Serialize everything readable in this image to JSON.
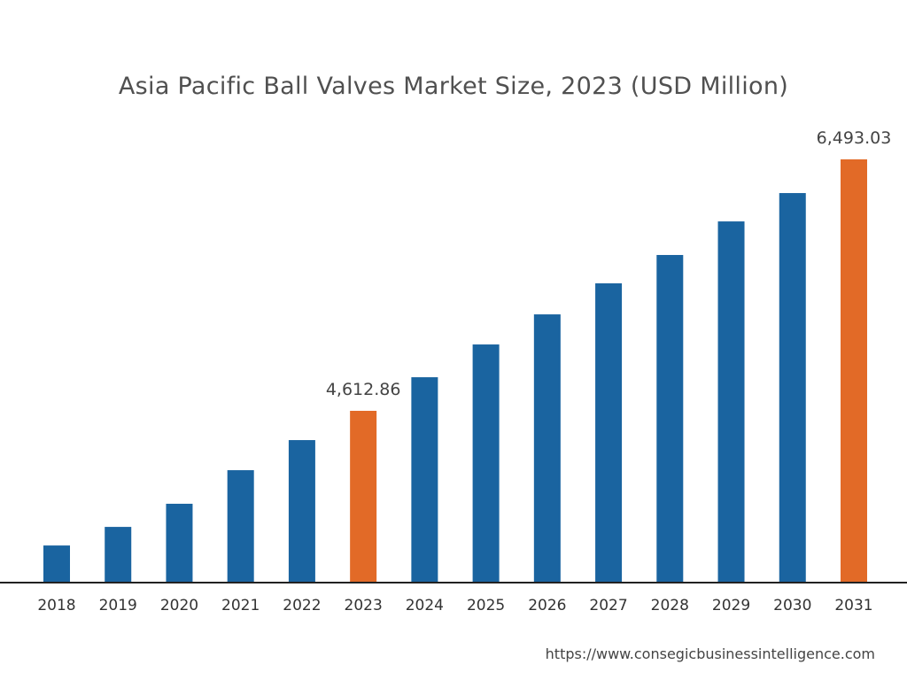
{
  "chart_data": {
    "type": "bar",
    "title": "Asia Pacific Ball Valves Market Size, 2023 (USD Million)",
    "categories": [
      "2018",
      "2019",
      "2020",
      "2021",
      "2022",
      "2023",
      "2024",
      "2025",
      "2026",
      "2027",
      "2028",
      "2029",
      "2030",
      "2031"
    ],
    "values": [
      3606,
      3745,
      3918,
      4169,
      4394,
      4612.86,
      4864,
      5109,
      5334,
      5566,
      5778,
      6029,
      6241,
      6493.03
    ],
    "data_labels": {
      "2023": "4,612.86",
      "2031": "6,493.03"
    },
    "highlight_categories": [
      "2023",
      "2031"
    ],
    "colors": {
      "bar": "#1a64a0",
      "highlight": "#e26a27",
      "axis": "#222222"
    },
    "xlabel": "",
    "ylabel": "",
    "grid": false,
    "y_axis_visible": false
  },
  "source": "https://www.consegicbusinessintelligence.com"
}
